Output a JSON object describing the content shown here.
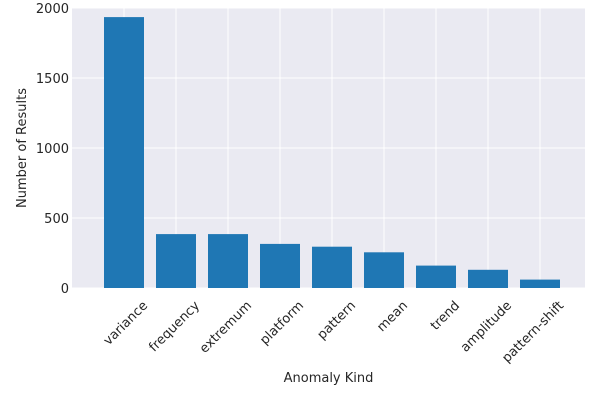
{
  "chart_data": {
    "type": "bar",
    "title": "",
    "xlabel": "Anomaly Kind",
    "ylabel": "Number of Results",
    "categories": [
      "variance",
      "frequency",
      "extremum",
      "platform",
      "pattern",
      "mean",
      "trend",
      "amplitude",
      "pattern-shift"
    ],
    "values": [
      1935,
      385,
      385,
      315,
      295,
      255,
      160,
      130,
      60
    ],
    "ylim": [
      0,
      2000
    ],
    "yticks": [
      0,
      500,
      1000,
      1500,
      2000
    ],
    "grid": true,
    "bar_color": "#1f77b4",
    "background_color": "#eaeaf2",
    "grid_color": "#ffffff"
  }
}
